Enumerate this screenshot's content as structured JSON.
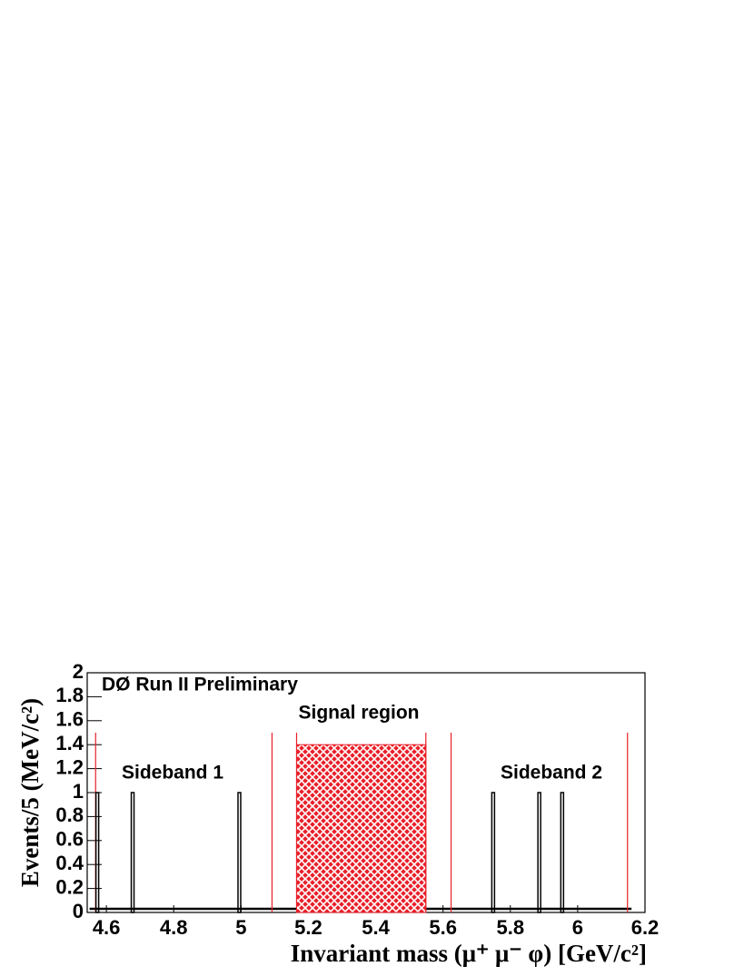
{
  "chart_data": {
    "type": "histogram",
    "title": "DØ Run II Preliminary",
    "x_label": "Invariant mass (μ⁺ μ⁻ φ) [GeV/c²]",
    "y_label": "Events/5 (MeV/c²)",
    "x": [
      4.573,
      4.678,
      4.995,
      5.749,
      5.886,
      5.954
    ],
    "values": [
      1,
      1,
      1,
      1,
      1,
      1
    ],
    "bin_width": 0.005,
    "background_level": 0.03,
    "background_range": [
      4.55,
      6.16
    ],
    "color": "#000000",
    "signal_region": [
      5.165,
      5.549
    ],
    "signal_height": 1.4,
    "signal_color": "#e8202a",
    "cut_lines": [
      4.568,
      5.092,
      5.624,
      6.148
    ],
    "cut_line_height": 1.5,
    "annotations": [
      "Signal region",
      "Sideband 1",
      "Sideband 2"
    ],
    "xlim": [
      4.543,
      6.2
    ],
    "ylim": [
      0,
      2
    ],
    "xticks": [
      4.6,
      4.8,
      5,
      5.2,
      5.4,
      5.6,
      5.8,
      6,
      6.2
    ],
    "yticks": [
      0,
      0.2,
      0.4,
      0.6,
      0.8,
      1,
      1.2,
      1.4,
      1.6,
      1.8,
      2
    ]
  }
}
